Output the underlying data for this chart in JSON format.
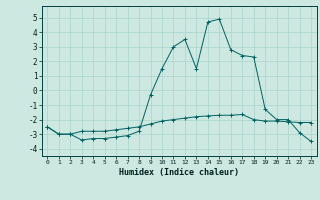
{
  "title": "",
  "xlabel": "Humidex (Indice chaleur)",
  "ylabel": "",
  "bg_color": "#cce8e0",
  "line_color": "#006060",
  "grid_color": "#a8d4cc",
  "x_ticks": [
    0,
    1,
    2,
    3,
    4,
    5,
    6,
    7,
    8,
    9,
    10,
    11,
    12,
    13,
    14,
    15,
    16,
    17,
    18,
    19,
    20,
    21,
    22,
    23
  ],
  "y_ticks": [
    -4,
    -3,
    -2,
    -1,
    0,
    1,
    2,
    3,
    4,
    5
  ],
  "ylim": [
    -4.5,
    5.8
  ],
  "xlim": [
    -0.5,
    23.5
  ],
  "series1_x": [
    0,
    1,
    2,
    3,
    4,
    5,
    6,
    7,
    8,
    9,
    10,
    11,
    12,
    13,
    14,
    15,
    16,
    17,
    18,
    19,
    20,
    21,
    22,
    23
  ],
  "series1_y": [
    -2.5,
    -3.0,
    -3.0,
    -2.8,
    -2.8,
    -2.8,
    -2.7,
    -2.6,
    -2.5,
    -2.3,
    -2.1,
    -2.0,
    -1.9,
    -1.8,
    -1.75,
    -1.7,
    -1.7,
    -1.65,
    -2.0,
    -2.1,
    -2.1,
    -2.15,
    -2.2,
    -2.2
  ],
  "series2_x": [
    0,
    1,
    2,
    3,
    4,
    5,
    6,
    7,
    8,
    9,
    10,
    11,
    12,
    13,
    14,
    15,
    16,
    17,
    18,
    19,
    20,
    21,
    22,
    23
  ],
  "series2_y": [
    -2.5,
    -3.0,
    -3.0,
    -3.4,
    -3.3,
    -3.3,
    -3.2,
    -3.1,
    -2.8,
    -0.3,
    1.5,
    3.0,
    3.5,
    1.5,
    4.7,
    4.9,
    2.8,
    2.4,
    2.3,
    -1.3,
    -2.0,
    -2.0,
    -2.9,
    -3.5
  ]
}
